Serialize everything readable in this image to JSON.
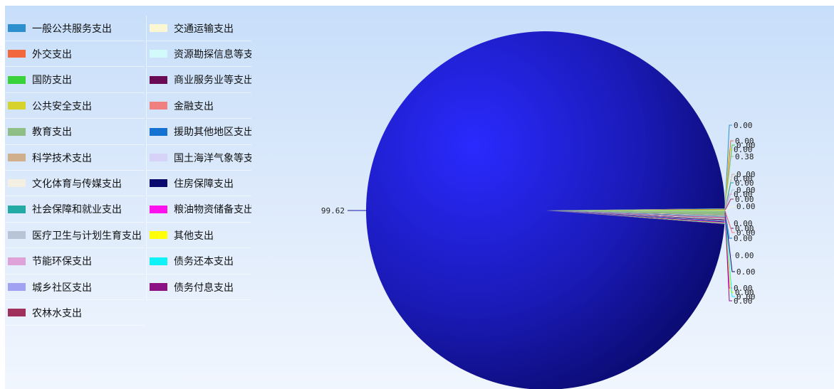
{
  "chart_data": {
    "type": "pie",
    "title": "",
    "series": [
      {
        "name": "一般公共服务支出",
        "value": 0.0,
        "color": "#2e8fcf",
        "label": "0.00"
      },
      {
        "name": "外交支出",
        "value": 0.0,
        "color": "#f2683c",
        "label": "0.00"
      },
      {
        "name": "国防支出",
        "value": 0.0,
        "color": "#39d23a",
        "label": "0.00"
      },
      {
        "name": "公共安全支出",
        "value": 0.0,
        "color": "#d8d32c",
        "label": "0.00"
      },
      {
        "name": "教育支出",
        "value": 0.38,
        "color": "#8fbf86",
        "label": "0.38"
      },
      {
        "name": "科学技术支出",
        "value": 0.0,
        "color": "#d0b08c",
        "label": "0.00"
      },
      {
        "name": "文化体育与传媒支出",
        "value": 0.0,
        "color": "#f3efe2",
        "label": "0.00"
      },
      {
        "name": "社会保障和就业支出",
        "value": 0.0,
        "color": "#23aaa5",
        "label": "0.00"
      },
      {
        "name": "医疗卫生与计划生育支出",
        "value": 0.0,
        "color": "#b8c5d6",
        "label": "0.00"
      },
      {
        "name": "节能环保支出",
        "value": 0.0,
        "color": "#dfa2d8",
        "label": "0.00"
      },
      {
        "name": "城乡社区支出",
        "value": 99.62,
        "color": "#a2a2f2",
        "label": "99.62"
      },
      {
        "name": "农林水支出",
        "value": 0.0,
        "color": "#a0305c",
        "label": "0.00"
      },
      {
        "name": "交通运输支出",
        "value": 0.0,
        "color": "#fbf7d2",
        "label": "0.00"
      },
      {
        "name": "资源勘探信息等支",
        "value": 0.0,
        "color": "#d2fafa",
        "label": "0.00"
      },
      {
        "name": "商业服务业等支出",
        "value": 0.0,
        "color": "#6a0a55",
        "label": "0.00"
      },
      {
        "name": "金融支出",
        "value": 0.0,
        "color": "#f08080",
        "label": "0.00"
      },
      {
        "name": "援助其他地区支出",
        "value": 0.0,
        "color": "#1473d2",
        "label": "0.00"
      },
      {
        "name": "国土海洋气象等支",
        "value": 0.0,
        "color": "#d6d2f8",
        "label": "0.00"
      },
      {
        "name": "住房保障支出",
        "value": 0.0,
        "color": "#0a0a6e",
        "label": "0.00"
      },
      {
        "name": "粮油物资储备支出",
        "value": 0.0,
        "color": "#ff11ee",
        "label": "0.00"
      },
      {
        "name": "其他支出",
        "value": 0.0,
        "color": "#ffff0a",
        "label": "0.00"
      },
      {
        "name": "债务还本支出",
        "value": 0.0,
        "color": "#0ff2f8",
        "label": "0.00"
      },
      {
        "name": "债务付息支出",
        "value": 0.0,
        "color": "#8c1185",
        "label": "0.00"
      }
    ],
    "legend_placement": "left",
    "pie_main_color": "#1616a8"
  }
}
